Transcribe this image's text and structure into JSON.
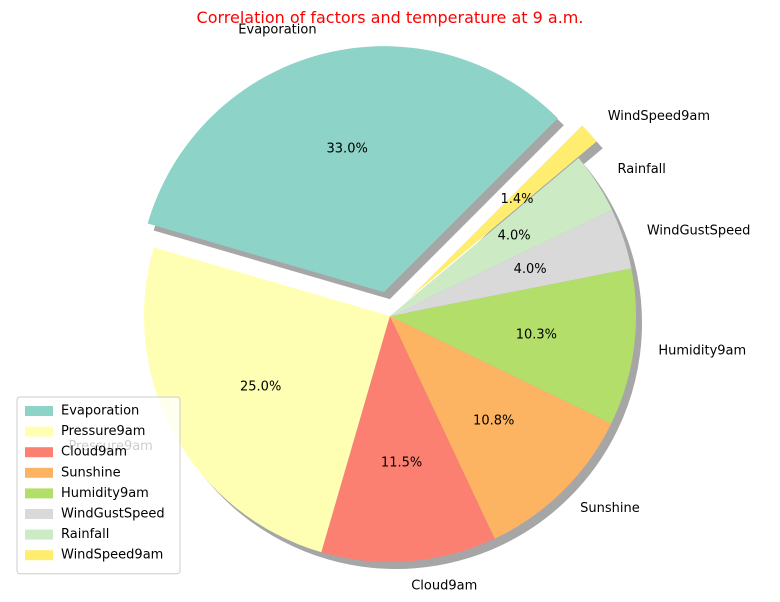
{
  "chart_data": {
    "type": "pie",
    "title": "Correlation of factors and temperature at 9 a.m.",
    "title_color": "#ff0000",
    "start_angle_deg": 45,
    "direction": "counterclockwise",
    "shadow": true,
    "legend_position": "lower-left",
    "slices": [
      {
        "label": "Evaporation",
        "value": 33.0,
        "pct_label": "33.0%",
        "color": "#8dd3c7",
        "exploded": true
      },
      {
        "label": "Pressure9am",
        "value": 25.0,
        "pct_label": "25.0%",
        "color": "#ffffb3",
        "exploded": false
      },
      {
        "label": "Cloud9am",
        "value": 11.5,
        "pct_label": "11.5%",
        "color": "#fb8072",
        "exploded": false
      },
      {
        "label": "Sunshine",
        "value": 10.8,
        "pct_label": "10.8%",
        "color": "#fdb462",
        "exploded": false
      },
      {
        "label": "Humidity9am",
        "value": 10.3,
        "pct_label": "10.3%",
        "color": "#b3de69",
        "exploded": false
      },
      {
        "label": "WindGustSpeed",
        "value": 4.0,
        "pct_label": "4.0%",
        "color": "#d9d9d9",
        "exploded": false
      },
      {
        "label": "Rainfall",
        "value": 4.0,
        "pct_label": "4.0%",
        "color": "#ccebc5",
        "exploded": false
      },
      {
        "label": "WindSpeed9am",
        "value": 1.4,
        "pct_label": "1.4%",
        "color": "#ffed6f",
        "exploded": true
      }
    ]
  }
}
